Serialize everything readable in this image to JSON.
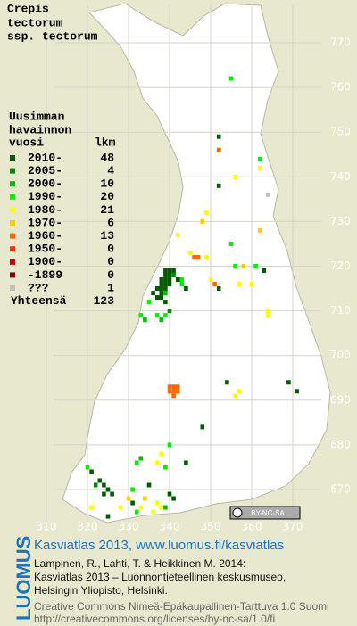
{
  "title_lines": [
    "Crepis",
    "tectorum",
    "ssp. tectorum"
  ],
  "legend": {
    "heading": [
      "Uusimman",
      "havainnon",
      "vuosi"
    ],
    "count_heading": "lkm",
    "periods": [
      {
        "label": "2010-",
        "count": 48,
        "color": "#005a00"
      },
      {
        "label": "2005-",
        "count": 4,
        "color": "#008a00"
      },
      {
        "label": "2000-",
        "count": 10,
        "color": "#00bb00"
      },
      {
        "label": "1990-",
        "count": 20,
        "color": "#00ee00"
      },
      {
        "label": "1980-",
        "count": 21,
        "color": "#ffff00"
      },
      {
        "label": "1970-",
        "count": 6,
        "color": "#ffcc00"
      },
      {
        "label": "1960-",
        "count": 13,
        "color": "#ff6600"
      },
      {
        "label": "1950-",
        "count": 0,
        "color": "#ff3300"
      },
      {
        "label": "1900-",
        "count": 0,
        "color": "#cc0000"
      },
      {
        "label": "-1899",
        "count": 0,
        "color": "#880000"
      },
      {
        "label": "???",
        "count": 1,
        "color": "#c0c0c0"
      }
    ],
    "total_label": "Yhteensä",
    "total": 123
  },
  "map": {
    "xlim": [
      310,
      370
    ],
    "ylim": [
      670,
      770
    ],
    "xticks": [
      310,
      320,
      330,
      340,
      350,
      360,
      370
    ],
    "yticks": [
      670,
      680,
      690,
      700,
      710,
      720,
      730,
      740,
      750,
      760,
      770
    ],
    "squares": [
      [
        355,
        762,
        3
      ],
      [
        352,
        749,
        0
      ],
      [
        352,
        746,
        6
      ],
      [
        352,
        738,
        0
      ],
      [
        362,
        744,
        3
      ],
      [
        362,
        742,
        4
      ],
      [
        356,
        740,
        4
      ],
      [
        364,
        736,
        10
      ],
      [
        349,
        732,
        4
      ],
      [
        355,
        725,
        3
      ],
      [
        342,
        727,
        4
      ],
      [
        346,
        722,
        6
      ],
      [
        347,
        722,
        6
      ],
      [
        349,
        722,
        4
      ],
      [
        345,
        723,
        4
      ],
      [
        339,
        719,
        0
      ],
      [
        340,
        719,
        0
      ],
      [
        341,
        719,
        0
      ],
      [
        339,
        718,
        0
      ],
      [
        340,
        718,
        0
      ],
      [
        341,
        718,
        1
      ],
      [
        338,
        717,
        0
      ],
      [
        339,
        717,
        0
      ],
      [
        340,
        717,
        0
      ],
      [
        342,
        717,
        0
      ],
      [
        343,
        717,
        3
      ],
      [
        338,
        716,
        0
      ],
      [
        339,
        716,
        0
      ],
      [
        340,
        716,
        0
      ],
      [
        337,
        715,
        0
      ],
      [
        338,
        715,
        0
      ],
      [
        339,
        715,
        0
      ],
      [
        336,
        714,
        0
      ],
      [
        338,
        714,
        0
      ],
      [
        339,
        714,
        2
      ],
      [
        337,
        713,
        0
      ],
      [
        338,
        713,
        0
      ],
      [
        335,
        712,
        3
      ],
      [
        339,
        712,
        0
      ],
      [
        344,
        715,
        0
      ],
      [
        343,
        716,
        3
      ],
      [
        356,
        720,
        3
      ],
      [
        361,
        720,
        3
      ],
      [
        363,
        719,
        0
      ],
      [
        360,
        716,
        4
      ],
      [
        357,
        716,
        4
      ],
      [
        352,
        715,
        0
      ],
      [
        351,
        716,
        6
      ],
      [
        350,
        717,
        4
      ],
      [
        333,
        709,
        3
      ],
      [
        334,
        708,
        2
      ],
      [
        337,
        709,
        3
      ],
      [
        338,
        708,
        2
      ],
      [
        339,
        709,
        3
      ],
      [
        340,
        710,
        1
      ],
      [
        364,
        710,
        4
      ],
      [
        364,
        709,
        4
      ],
      [
        340,
        693,
        6
      ],
      [
        341,
        693,
        6
      ],
      [
        342,
        693,
        6
      ],
      [
        340,
        692,
        6
      ],
      [
        341,
        692,
        6
      ],
      [
        342,
        692,
        6
      ],
      [
        341,
        691,
        6
      ],
      [
        348,
        684,
        0
      ],
      [
        354,
        694,
        0
      ],
      [
        369,
        694,
        0
      ],
      [
        371,
        692,
        0
      ],
      [
        356,
        691,
        4
      ],
      [
        357,
        692,
        4
      ],
      [
        340,
        680,
        3
      ],
      [
        338,
        678,
        4
      ],
      [
        337,
        676,
        4
      ],
      [
        339,
        675,
        3
      ],
      [
        344,
        676,
        0
      ],
      [
        332,
        676,
        3
      ],
      [
        333,
        677,
        2
      ],
      [
        320,
        675,
        3
      ],
      [
        321,
        674,
        0
      ],
      [
        323,
        672,
        0
      ],
      [
        324,
        671,
        0
      ],
      [
        325,
        670,
        0
      ],
      [
        324,
        669,
        0
      ],
      [
        326,
        669,
        0
      ],
      [
        322,
        671,
        1
      ],
      [
        331,
        670,
        3
      ],
      [
        335,
        671,
        0
      ],
      [
        340,
        669,
        0
      ],
      [
        341,
        668,
        0
      ],
      [
        337,
        667,
        4
      ],
      [
        338,
        666,
        4
      ],
      [
        336,
        665,
        4
      ],
      [
        331,
        667,
        0
      ],
      [
        328,
        666,
        4
      ],
      [
        321,
        666,
        4
      ],
      [
        325,
        664,
        0
      ],
      [
        333,
        666,
        4
      ],
      [
        332,
        665,
        3
      ],
      [
        339,
        666,
        2
      ],
      [
        330,
        668,
        5
      ],
      [
        334,
        668,
        5
      ],
      [
        358,
        720,
        5
      ],
      [
        348,
        730,
        5
      ],
      [
        362,
        728,
        5
      ]
    ]
  },
  "license_badge": "BY-NC-SA",
  "footer": {
    "brand": "LUOMUS",
    "link": "Kasviatlas 2013, www.luomus.fi/kasviatlas",
    "citation": [
      "Lampinen, R., Lahti, T. & Heikkinen M. 2014:",
      "Kasviatlas 2013 – Luonnontieteellinen keskusmuseo,",
      "Helsingin Yliopisto, Helsinki."
    ],
    "license": [
      "Creative Commons Nimeä-Epäkaupallinen-Tarttuva 1.0 Suomi",
      "http://creativecommons.org/licenses/by-nc-sa/1.0/fi"
    ]
  }
}
